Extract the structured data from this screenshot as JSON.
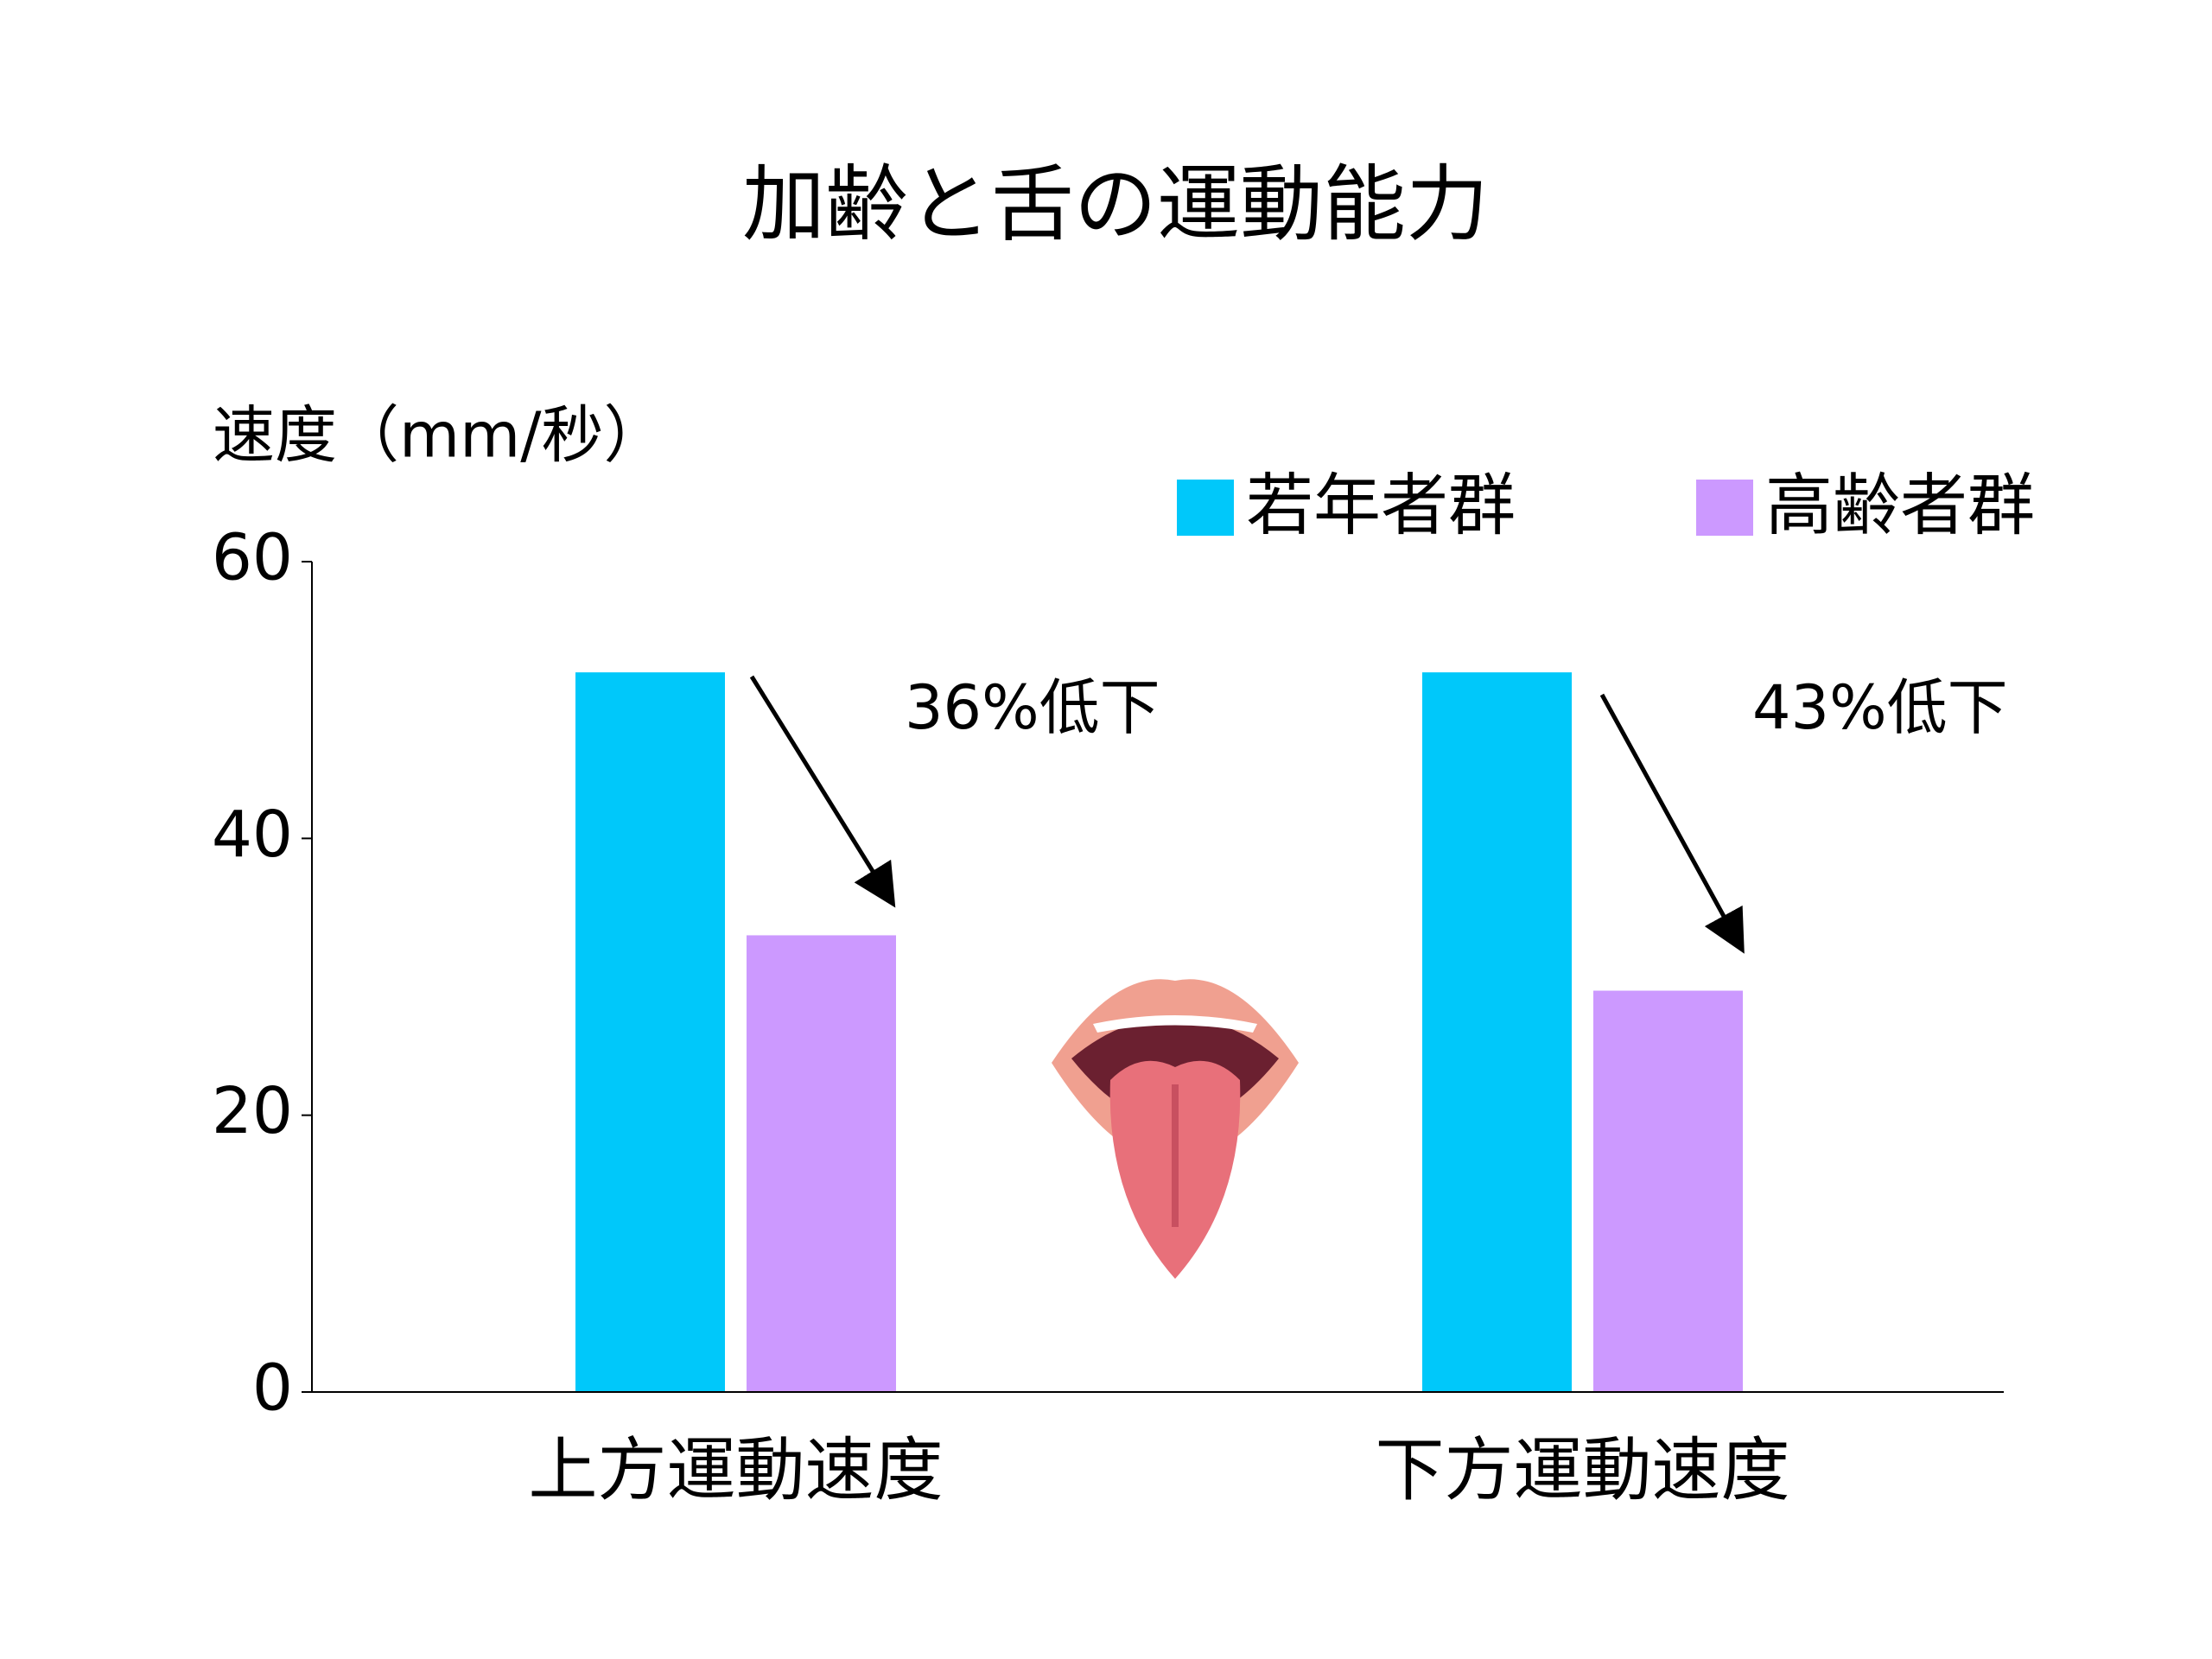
{
  "chart_data": {
    "type": "bar",
    "title": "加齢と舌の運動能力",
    "y_label": "速度（mm/秒）",
    "categories": [
      "上方運動速度",
      "下方運動速度"
    ],
    "series": [
      {
        "name": "若年者群",
        "color": "#00c8fa",
        "values": [
          52,
          52
        ]
      },
      {
        "name": "高齢者群",
        "color": "#cc99ff",
        "values": [
          33,
          29
        ]
      }
    ],
    "annotations": [
      "36%低下",
      "43%低下"
    ],
    "ylim": [
      0,
      60
    ],
    "yticks": [
      0,
      20,
      40,
      60
    ],
    "grid": false
  }
}
